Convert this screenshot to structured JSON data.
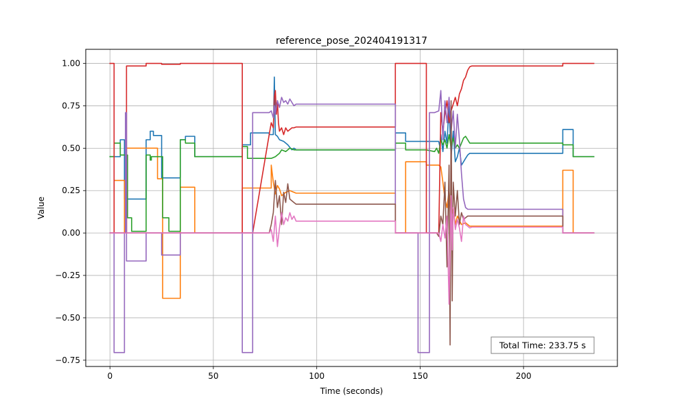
{
  "chart_data": {
    "type": "line",
    "title": "reference_pose_202404191317",
    "xlabel": "Time (seconds)",
    "ylabel": "Value",
    "xlim": [
      -11.7,
      245.4
    ],
    "ylim": [
      -0.787,
      1.083
    ],
    "xticks": [
      0,
      50,
      100,
      150,
      200
    ],
    "yticks": [
      -0.75,
      -0.5,
      -0.25,
      0.0,
      0.25,
      0.5,
      0.75,
      1.0
    ],
    "xtick_labels": [
      "0",
      "50",
      "100",
      "150",
      "200"
    ],
    "ytick_labels": [
      "−0.75",
      "−0.50",
      "−0.25",
      "0.00",
      "0.25",
      "0.50",
      "0.75",
      "1.00"
    ],
    "grid": true,
    "annotation": "Total Time: 233.75 s",
    "annotation_placement": "bottom-right",
    "series": [
      {
        "color": "#1f77b4",
        "x": [
          0,
          5,
          5,
          7,
          7,
          9,
          9,
          17.5,
          17.5,
          19.5,
          19.5,
          21,
          21,
          25,
          25,
          34,
          34,
          36.5,
          36.5,
          41,
          41,
          64,
          64,
          68,
          68,
          77,
          77,
          79,
          79.5,
          80,
          81,
          82,
          84,
          86,
          88,
          89,
          90,
          95,
          138,
          138,
          143,
          143,
          153,
          153,
          157,
          159,
          159.5,
          160,
          161,
          162,
          163,
          164,
          165,
          166,
          167,
          168,
          169,
          170,
          171,
          172,
          173,
          174,
          175,
          219,
          219,
          224,
          224,
          234
        ],
        "y": [
          0.45,
          0.45,
          0.55,
          0.55,
          0.2,
          0.2,
          0.2,
          0.2,
          0.55,
          0.55,
          0.6,
          0.6,
          0.575,
          0.575,
          0.325,
          0.325,
          0.55,
          0.55,
          0.57,
          0.57,
          0.45,
          0.45,
          0.52,
          0.52,
          0.59,
          0.59,
          0.58,
          0.58,
          0.92,
          0.58,
          0.57,
          0.55,
          0.54,
          0.52,
          0.49,
          0.5,
          0.49,
          0.49,
          0.49,
          0.59,
          0.59,
          0.54,
          0.54,
          0.54,
          0.54,
          0.54,
          0.51,
          0.58,
          0.48,
          0.6,
          0.53,
          0.75,
          0.45,
          0.6,
          0.42,
          0.45,
          0.5,
          0.4,
          0.42,
          0.44,
          0.46,
          0.47,
          0.47,
          0.47,
          0.61,
          0.61,
          0.45,
          0.45
        ]
      },
      {
        "color": "#ff7f0e",
        "x": [
          0,
          2,
          2,
          7,
          7,
          8,
          8,
          17.5,
          17.5,
          23,
          23,
          25.5,
          25.5,
          34,
          34,
          41,
          41,
          64,
          64,
          78,
          78,
          79,
          80,
          81,
          82,
          83,
          85,
          87,
          89,
          90,
          138,
          138,
          143,
          143,
          153,
          153,
          159,
          160,
          161,
          162,
          163,
          164,
          165,
          166,
          167,
          168,
          170,
          172,
          174,
          175,
          219,
          219,
          224,
          224,
          234
        ],
        "y": [
          0,
          0,
          0.31,
          0.31,
          0,
          0,
          0.5,
          0.5,
          0.5,
          0.5,
          0.32,
          0.32,
          -0.385,
          -0.385,
          0.27,
          0.27,
          0,
          0,
          0.265,
          0.265,
          0.4,
          0.3,
          0.23,
          0.28,
          0.26,
          0.22,
          0.24,
          0.25,
          0.24,
          0.235,
          0.235,
          0,
          0,
          0.42,
          0.42,
          0.4,
          0.4,
          0.39,
          0.3,
          0.2,
          0.15,
          0.25,
          0.1,
          0.15,
          0.05,
          0.1,
          0.05,
          0.06,
          0.04,
          0.04,
          0.04,
          0.37,
          0.37,
          0,
          0
        ]
      },
      {
        "color": "#2ca02c",
        "x": [
          0,
          2,
          2,
          5,
          5,
          8.5,
          8.5,
          10.5,
          10.5,
          17.5,
          17.5,
          19.5,
          19.5,
          20,
          20,
          25.5,
          25.5,
          28.5,
          28.5,
          34,
          34,
          36.5,
          36.5,
          41,
          41,
          64,
          64,
          66.5,
          66.5,
          70,
          78,
          80,
          82,
          83,
          85,
          87,
          89,
          90,
          138,
          138,
          143,
          143,
          153,
          153,
          157,
          158,
          159,
          160,
          161,
          162,
          163,
          164,
          165,
          166,
          167,
          168,
          169,
          170,
          171,
          172,
          173,
          174,
          175,
          219,
          219,
          224,
          224,
          234
        ],
        "y": [
          0.45,
          0.45,
          0.53,
          0.53,
          0.46,
          0.46,
          0.09,
          0.09,
          0.01,
          0.01,
          0.46,
          0.46,
          0.43,
          0.43,
          0.45,
          0.45,
          0.09,
          0.09,
          0.01,
          0.01,
          0.55,
          0.55,
          0.53,
          0.53,
          0.45,
          0.45,
          0.51,
          0.51,
          0.44,
          0.44,
          0.44,
          0.45,
          0.47,
          0.49,
          0.48,
          0.5,
          0.49,
          0.49,
          0.49,
          0.53,
          0.53,
          0.49,
          0.49,
          0.49,
          0.48,
          0.5,
          0.47,
          0.55,
          0.52,
          0.55,
          0.5,
          0.58,
          0.5,
          0.56,
          0.5,
          0.52,
          0.5,
          0.53,
          0.56,
          0.57,
          0.55,
          0.53,
          0.53,
          0.53,
          0.52,
          0.52,
          0.45,
          0.45
        ]
      },
      {
        "color": "#d62728",
        "x": [
          0,
          2,
          2,
          8,
          8,
          17.5,
          17.5,
          25,
          25,
          34,
          34,
          64,
          64,
          69,
          77,
          78,
          79,
          79.5,
          80,
          80.5,
          81,
          81.5,
          82,
          83,
          84,
          85,
          86,
          87,
          88,
          89,
          90,
          138,
          138,
          153,
          153,
          159,
          160,
          161,
          162,
          163,
          164,
          165,
          166,
          167,
          168,
          169,
          170,
          171,
          172,
          173,
          174,
          175,
          219,
          219,
          234
        ],
        "y": [
          1.0,
          1.0,
          0.0,
          0.0,
          0.985,
          0.985,
          1.0,
          1.0,
          0.995,
          0.995,
          1.0,
          1.0,
          0.0,
          0.0,
          0.58,
          0.65,
          0.62,
          0.8,
          0.84,
          0.7,
          0.78,
          0.65,
          0.6,
          0.62,
          0.58,
          0.62,
          0.6,
          0.61,
          0.62,
          0.62,
          0.625,
          0.625,
          1.0,
          1.0,
          0.0,
          0.0,
          0.71,
          0.6,
          0.7,
          0.78,
          0.65,
          0.72,
          0.76,
          0.8,
          0.75,
          0.82,
          0.85,
          0.9,
          0.92,
          0.96,
          0.98,
          0.985,
          0.985,
          1.0,
          1.0
        ]
      },
      {
        "color": "#9467bd",
        "x": [
          0,
          2,
          2,
          7,
          7,
          7.5,
          7.5,
          8,
          8,
          17.5,
          17.5,
          25,
          25,
          34,
          34,
          64,
          64,
          69,
          69,
          77,
          78,
          79,
          79.5,
          80,
          81,
          82,
          83,
          84,
          85,
          86,
          87,
          88,
          89,
          90,
          138,
          138,
          149,
          149,
          154.5,
          154.5,
          157,
          159,
          160,
          161,
          162,
          163,
          164,
          165,
          166,
          167,
          168,
          169,
          170,
          171,
          172,
          173,
          174,
          175,
          219,
          219,
          234
        ],
        "y": [
          0,
          0,
          -0.705,
          -0.705,
          0.0,
          0.0,
          0.71,
          0.71,
          -0.165,
          -0.165,
          0.0,
          0.0,
          -0.13,
          -0.13,
          0.0,
          0.0,
          -0.705,
          -0.705,
          0.71,
          0.71,
          0.72,
          0.68,
          0.75,
          0.7,
          0.78,
          0.74,
          0.8,
          0.77,
          0.78,
          0.76,
          0.79,
          0.77,
          0.75,
          0.76,
          0.76,
          0.0,
          0.0,
          -0.705,
          -0.705,
          0.71,
          0.71,
          0.72,
          0.84,
          0.55,
          0.78,
          0.65,
          0.8,
          0.6,
          0.72,
          0.5,
          0.7,
          0.55,
          0.35,
          0.2,
          0.15,
          0.14,
          0.14,
          0.14,
          0.14,
          0.0,
          0.0
        ]
      },
      {
        "color": "#8c564b",
        "x": [
          0,
          77,
          78,
          79,
          80,
          81,
          82,
          83,
          84,
          85,
          86,
          87,
          88,
          89,
          90,
          138,
          138,
          158,
          159,
          160,
          161,
          162,
          163,
          164,
          164.5,
          165,
          165.5,
          166,
          167,
          168,
          169,
          170,
          171,
          172,
          173,
          174,
          175,
          219,
          219,
          234
        ],
        "y": [
          0,
          0,
          0.05,
          0.12,
          0.31,
          0.15,
          0.22,
          0.05,
          0.24,
          0.18,
          0.29,
          0.2,
          0.19,
          0.18,
          0.17,
          0.17,
          0.0,
          0.0,
          -0.02,
          0.1,
          0.05,
          0.3,
          -0.2,
          0.4,
          -0.66,
          0.78,
          -0.4,
          0.3,
          0.1,
          0.25,
          0.05,
          0.12,
          0.08,
          0.09,
          0.1,
          0.1,
          0.1,
          0.1,
          0.0,
          0.0
        ]
      },
      {
        "color": "#e377c2",
        "x": [
          0,
          77,
          78,
          79,
          80,
          81,
          82,
          83,
          84,
          85,
          86,
          87,
          88,
          89,
          90,
          138,
          138,
          159,
          160,
          161,
          162,
          163,
          164,
          165,
          165.5,
          166,
          167,
          168,
          169,
          170,
          171,
          172,
          173,
          174,
          175,
          219,
          219,
          234
        ],
        "y": [
          0,
          0,
          0.02,
          -0.05,
          0.1,
          -0.08,
          0.03,
          0.12,
          0.05,
          0.09,
          0.07,
          0.12,
          0.08,
          0.1,
          0.07,
          0.07,
          0.0,
          0.0,
          -0.05,
          0.05,
          -0.03,
          0.1,
          -0.42,
          0.22,
          -0.1,
          0.15,
          0.02,
          0.08,
          0.03,
          -0.05,
          0.1,
          0.05,
          0.04,
          0.03,
          0.035,
          0.035,
          0.0,
          0.0
        ]
      }
    ]
  }
}
